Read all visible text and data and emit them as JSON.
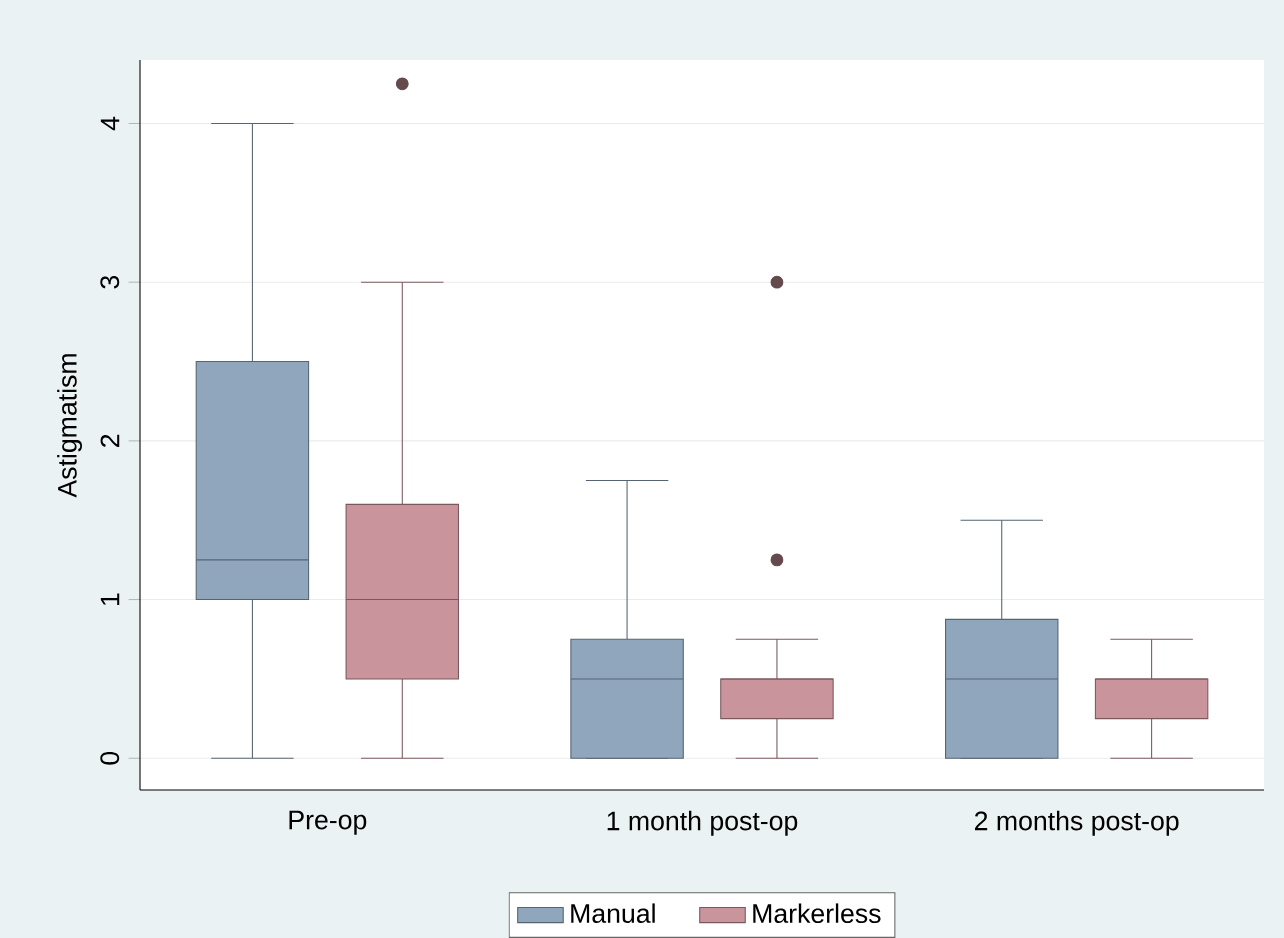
{
  "chart_data": {
    "type": "box",
    "ylabel": "Astigmatism",
    "categories": [
      "Pre-op",
      "1 month post-op",
      "2 months post-op"
    ],
    "series": [
      {
        "name": "Manual",
        "color": "#8fa6bd",
        "boxes": [
          {
            "low": 0,
            "q1": 1,
            "median": 1.25,
            "q3": 2.5,
            "high": 4
          },
          {
            "low": 0,
            "q1": 0,
            "median": 0.5,
            "q3": 0.75,
            "high": 1.75
          },
          {
            "low": 0,
            "q1": 0,
            "median": 0.5,
            "q3": 0.875,
            "high": 1.5
          }
        ]
      },
      {
        "name": "Markerless",
        "color": "#c9949b",
        "boxes": [
          {
            "low": 0,
            "q1": 0.5,
            "median": 1,
            "q3": 1.6,
            "high": 3,
            "outliers": [
              4.25
            ]
          },
          {
            "low": 0,
            "q1": 0.25,
            "median": 0.5,
            "q3": 0.5,
            "high": 0.75,
            "outliers": [
              1.25,
              3
            ]
          },
          {
            "low": 0,
            "q1": 0.25,
            "median": 0.5,
            "q3": 0.5,
            "high": 0.75
          }
        ]
      }
    ],
    "ylim": [
      -0.2,
      4.4
    ],
    "yticks": [
      0,
      1,
      2,
      3,
      4
    ],
    "grid": "y",
    "legend": "bottom"
  }
}
